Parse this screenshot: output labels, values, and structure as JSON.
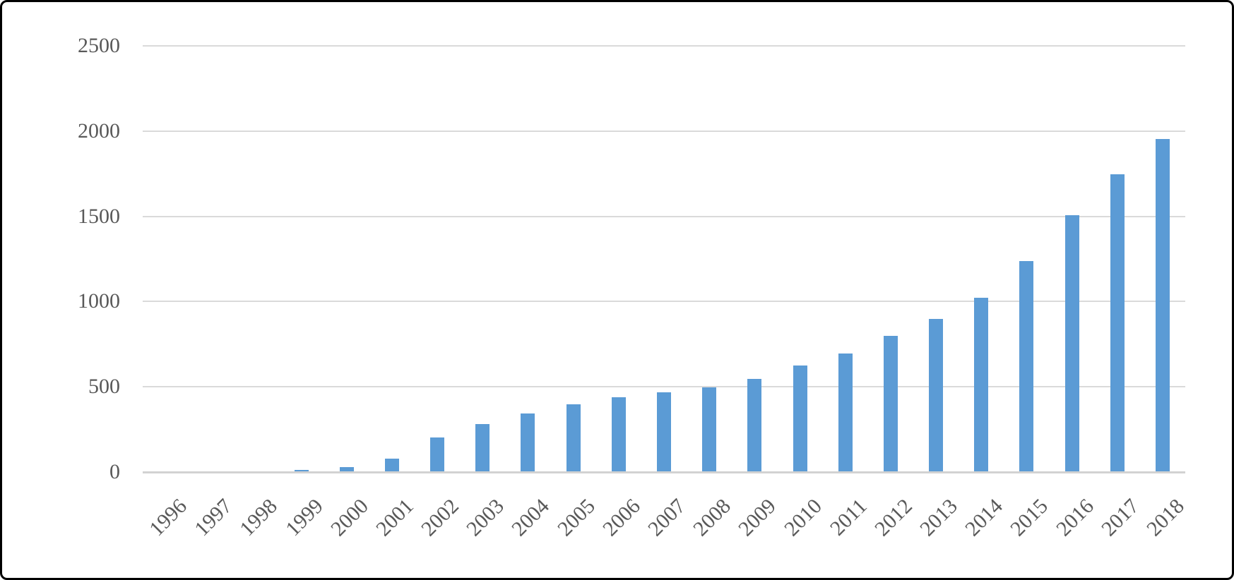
{
  "figure": {
    "background_color": "#FFFFFF",
    "border_color": "#000000"
  },
  "chart_data": {
    "type": "bar",
    "title": "",
    "xlabel": "",
    "ylabel": "",
    "categories": [
      "1996",
      "1997",
      "1998",
      "1999",
      "2000",
      "2001",
      "2002",
      "2003",
      "2004",
      "2005",
      "2006",
      "2007",
      "2008",
      "2009",
      "2010",
      "2011",
      "2012",
      "2013",
      "2014",
      "2015",
      "2016",
      "2017",
      "2018"
    ],
    "values": [
      1,
      2,
      5,
      14,
      30,
      78,
      203,
      281,
      345,
      397,
      437,
      466,
      495,
      547,
      624,
      695,
      798,
      900,
      1022,
      1238,
      1505,
      1745,
      1955
    ],
    "ylim": [
      0,
      2500
    ],
    "yticks": [
      0,
      500,
      1000,
      1500,
      2000,
      2500
    ],
    "grid": "horizontal",
    "legend": "none",
    "x_tick_rotation_deg": 45,
    "bar_color": "#5B9BD5",
    "gridline_color": "#DADADA",
    "axis_line_color": "#D2D2D2",
    "tick_label_color": "#595959"
  }
}
